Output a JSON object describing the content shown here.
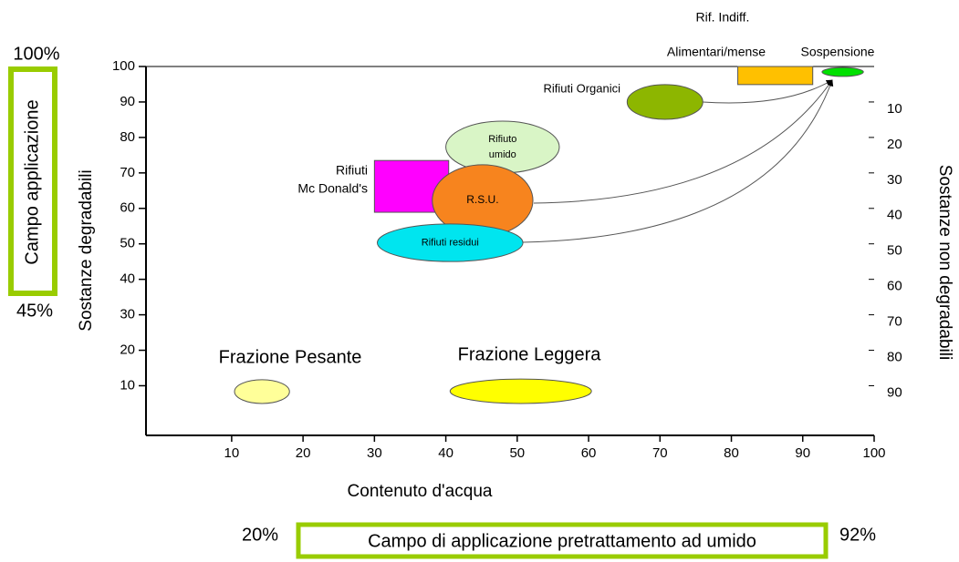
{
  "chart_data": {
    "type": "region",
    "xlabel": "Contenuto d'acqua",
    "ylabel": "Sostanze  degradabili",
    "y2label": "Sostanze non degradabili",
    "xlim": [
      -2,
      100
    ],
    "ylim": [
      -4,
      100
    ],
    "y2lim": [
      0,
      104
    ],
    "xticks": [
      10,
      20,
      30,
      40,
      50,
      60,
      70,
      80,
      90,
      100
    ],
    "yticks": [
      10,
      20,
      30,
      40,
      50,
      60,
      70,
      80,
      90,
      100
    ],
    "y2ticks": [
      10,
      20,
      30,
      40,
      50,
      60,
      70,
      80,
      90
    ],
    "regions": [
      {
        "label": [
          "Rifiuti Organici"
        ],
        "shape": "ellipse",
        "color": "#8db600",
        "x": [
          65.4,
          76
        ],
        "y": [
          85.1,
          94.9
        ]
      },
      {
        "label": [
          "Rif. Indiff.",
          "Alimentari/mense"
        ],
        "shape": "rect",
        "color": "#ffc000",
        "x": [
          80.9,
          91.4
        ],
        "y": [
          94.9,
          100
        ]
      },
      {
        "label": [
          "Sospensione"
        ],
        "shape": "ellipse",
        "color": "#00e000",
        "x": [
          92.7,
          98.5
        ],
        "y": [
          97.2,
          99.7
        ]
      },
      {
        "label": [
          "Rifiuto",
          "umido"
        ],
        "shape": "ellipse",
        "color": "#d9f5c6",
        "x": [
          40,
          55.9
        ],
        "y": [
          70,
          84.6
        ]
      },
      {
        "label": [
          "Rifiuti",
          "Mc Donald's"
        ],
        "shape": "rect",
        "color": "#ff00ff",
        "x": [
          30,
          40.4
        ],
        "y": [
          58.9,
          73.5
        ]
      },
      {
        "label": [
          "R.S.U."
        ],
        "shape": "ellipse",
        "color": "#f7841e",
        "x": [
          38.1,
          52.2
        ],
        "y": [
          52.2,
          72.3
        ]
      },
      {
        "label": [
          "Rifiuti residui"
        ],
        "shape": "ellipse",
        "color": "#00e5ef",
        "x": [
          30.4,
          50.8
        ],
        "y": [
          45,
          55.6
        ]
      },
      {
        "label": [
          "Frazione Pesante"
        ],
        "shape": "ellipse",
        "color": "#ffff99",
        "x": [
          10.4,
          18.1
        ],
        "y": [
          5,
          11.7
        ]
      },
      {
        "label": [
          "Frazione Leggera"
        ],
        "shape": "ellipse",
        "color": "#ffff00",
        "x": [
          40.6,
          60.4
        ],
        "y": [
          5,
          11.9
        ]
      }
    ],
    "annotations": {
      "left_top": "100%",
      "left_box": "Campo applicazione",
      "left_bottom": "45%",
      "bottom_left": "20%",
      "bottom_box": "Campo di applicazione pretrattamento ad umido",
      "bottom_right": "92%"
    }
  }
}
